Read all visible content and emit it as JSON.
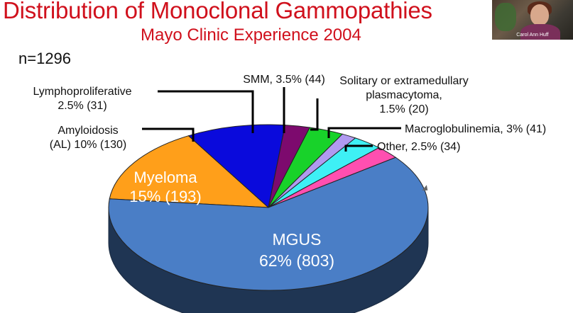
{
  "slide": {
    "title": "Distribution of Monoclonal Gammopathies",
    "subtitle": "Mayo Clinic Experience 2004",
    "sample_size": "n=1296"
  },
  "video": {
    "participant_name": "Carol Ann Huff"
  },
  "chart_data": {
    "type": "pie",
    "title": "Distribution of Monoclonal Gammopathies",
    "subtitle": "Mayo Clinic Experience 2004",
    "n": 1296,
    "slices": [
      {
        "key": "mgus",
        "name": "MGUS",
        "percent": 62,
        "count": 803,
        "color": "#4a7ec6",
        "label": [
          "MGUS",
          "62% (803)"
        ]
      },
      {
        "key": "myeloma",
        "name": "Myeloma",
        "percent": 15,
        "count": 193,
        "color": "#ff9f1a",
        "label": [
          "Myeloma",
          "15% (193)"
        ]
      },
      {
        "key": "amyloidosis",
        "name": "Amyloidosis (AL)",
        "percent": 10,
        "count": 130,
        "color": "#0a0adc",
        "label": [
          "Amyloidosis",
          "(AL) 10% (130)"
        ]
      },
      {
        "key": "lymphoproliferative",
        "name": "Lymphoproliferative",
        "percent": 2.5,
        "count": 31,
        "color": "#7d0a6e",
        "label": [
          "Lymphoproliferative",
          "2.5% (31)"
        ]
      },
      {
        "key": "smm",
        "name": "SMM",
        "percent": 3.5,
        "count": 44,
        "color": "#18d22a",
        "label": [
          "SMM, 3.5% (44)"
        ]
      },
      {
        "key": "plasmacytoma",
        "name": "Solitary or extramedullary plasmacytoma",
        "percent": 1.5,
        "count": 20,
        "color": "#b09af0",
        "label": [
          "Solitary or extramedullary",
          "plasmacytoma,",
          "1.5% (20)"
        ]
      },
      {
        "key": "macroglobulinemia",
        "name": "Macroglobulinemia",
        "percent": 3,
        "count": 41,
        "color": "#3ef0f5",
        "label": [
          "Macroglobulinemia, 3% (41)"
        ]
      },
      {
        "key": "other",
        "name": "Other",
        "percent": 2.5,
        "count": 34,
        "color": "#ff4fb0",
        "label": [
          "Other, 2.5% (34)"
        ]
      }
    ],
    "legend": "none",
    "grid": false
  }
}
